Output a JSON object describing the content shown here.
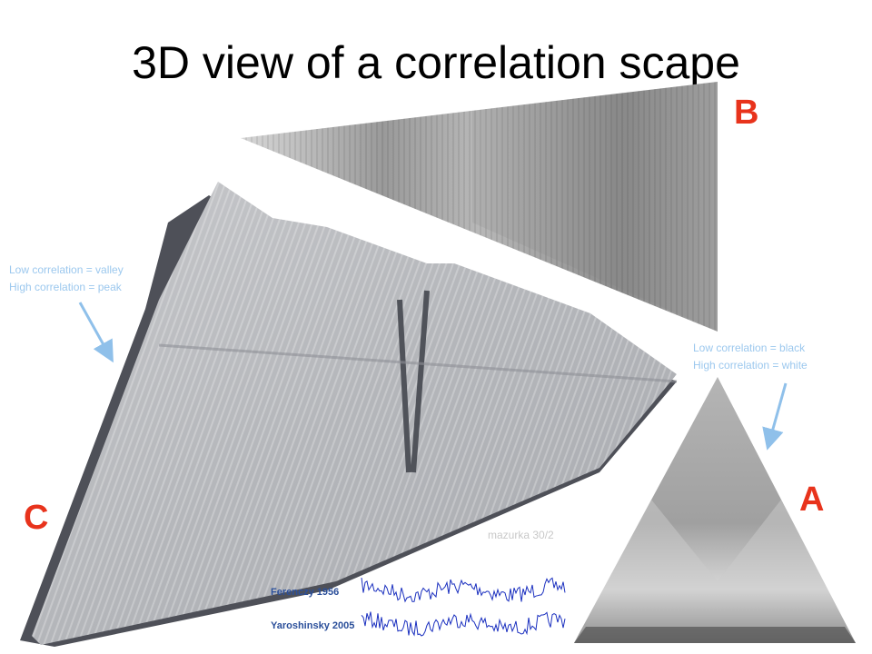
{
  "slide": {
    "title": "3D view of a correlation scape",
    "panels": {
      "a": "A",
      "b": "B",
      "c": "C"
    },
    "annotations": {
      "left": [
        "Low correlation = valley",
        "High correlation = peak"
      ],
      "right": [
        "Low correlation = black",
        "High correlation = white"
      ]
    },
    "caption": "mazurka 30/2",
    "performers": [
      "Ferenczy 1956",
      "Yaroshinsky 2005"
    ]
  }
}
